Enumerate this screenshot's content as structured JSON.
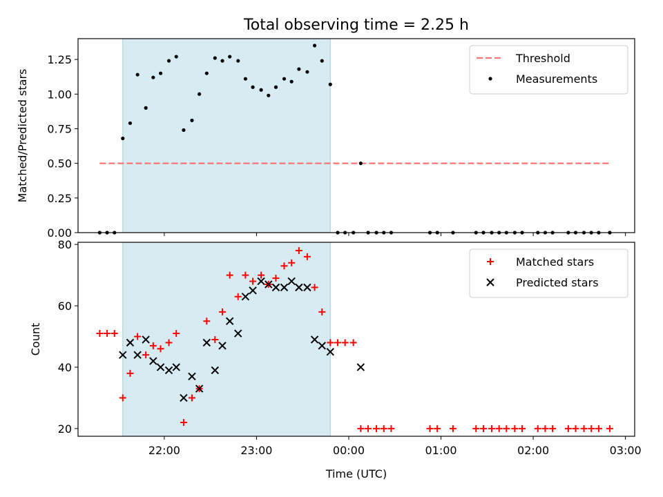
{
  "figure_title": "Total observing time = 2.25 h",
  "xlabel": "Time (UTC)",
  "shared_x": {
    "tick_labels": [
      "22:00",
      "23:00",
      "00:00",
      "01:00",
      "02:00",
      "03:00"
    ],
    "tick_hours": [
      22,
      23,
      24,
      25,
      26,
      27
    ],
    "xlim": [
      21.065,
      27.1
    ],
    "shaded_span": [
      21.55,
      23.8
    ]
  },
  "chart_data": [
    {
      "type": "scatter",
      "panel": "top",
      "ylabel": "Matched/Predicted stars",
      "ylim": [
        0,
        1.4
      ],
      "yticks": [
        0.0,
        0.25,
        0.5,
        0.75,
        1.0,
        1.25
      ],
      "ytick_labels": [
        "0.00",
        "0.25",
        "0.50",
        "0.75",
        "1.00",
        "1.25"
      ],
      "legend": {
        "placement": "top-right",
        "entries": [
          "Threshold",
          "Measurements"
        ]
      },
      "threshold": {
        "name": "Threshold",
        "y": 0.5,
        "x_range": [
          21.3,
          26.83
        ],
        "color": "#ff7373"
      },
      "series": [
        {
          "name": "Measurements",
          "marker": "dot",
          "color": "#000000",
          "x": [
            21.3,
            21.38,
            21.46,
            21.55,
            21.63,
            21.71,
            21.8,
            21.88,
            21.96,
            22.05,
            22.13,
            22.21,
            22.3,
            22.38,
            22.46,
            22.55,
            22.63,
            22.71,
            22.8,
            22.88,
            22.96,
            23.05,
            23.13,
            23.21,
            23.3,
            23.38,
            23.46,
            23.55,
            23.63,
            23.71,
            23.8,
            23.88,
            23.96,
            24.05,
            24.13,
            24.21,
            24.3,
            24.38,
            24.46,
            24.88,
            24.96,
            25.13,
            25.38,
            25.46,
            25.55,
            25.63,
            25.71,
            25.8,
            25.88,
            26.05,
            26.13,
            26.21,
            26.38,
            26.46,
            26.55,
            26.63,
            26.71,
            26.83
          ],
          "y": [
            0,
            0,
            0,
            0.68,
            0.79,
            1.14,
            0.9,
            1.12,
            1.15,
            1.24,
            1.27,
            0.74,
            0.81,
            1.0,
            1.15,
            1.26,
            1.24,
            1.27,
            1.24,
            1.11,
            1.05,
            1.03,
            0.99,
            1.05,
            1.11,
            1.09,
            1.18,
            1.16,
            1.35,
            1.24,
            1.07,
            0,
            0,
            0,
            0.5,
            0,
            0,
            0,
            0,
            0,
            0,
            0,
            0,
            0,
            0,
            0,
            0,
            0,
            0,
            0,
            0,
            0,
            0,
            0,
            0,
            0,
            0,
            0
          ]
        }
      ]
    },
    {
      "type": "scatter",
      "panel": "bottom",
      "ylabel": "Count",
      "ylim": [
        17.5,
        80.7
      ],
      "yticks": [
        20,
        40,
        60,
        80
      ],
      "ytick_labels": [
        "20",
        "40",
        "60",
        "80"
      ],
      "legend": {
        "placement": "top-right",
        "entries": [
          "Matched stars",
          "Predicted stars"
        ]
      },
      "series": [
        {
          "name": "Matched stars",
          "marker": "plus",
          "color": "#ff0000",
          "x": [
            21.3,
            21.38,
            21.46,
            21.55,
            21.63,
            21.71,
            21.8,
            21.88,
            21.96,
            22.05,
            22.13,
            22.21,
            22.3,
            22.38,
            22.46,
            22.55,
            22.63,
            22.71,
            22.8,
            22.88,
            22.96,
            23.05,
            23.13,
            23.21,
            23.3,
            23.38,
            23.46,
            23.55,
            23.63,
            23.71,
            23.8,
            23.88,
            23.96,
            24.05,
            24.13,
            24.21,
            24.3,
            24.38,
            24.46,
            24.88,
            24.96,
            25.13,
            25.38,
            25.46,
            25.55,
            25.63,
            25.71,
            25.8,
            25.88,
            26.05,
            26.13,
            26.21,
            26.38,
            26.46,
            26.55,
            26.63,
            26.71,
            26.83
          ],
          "y": [
            51,
            51,
            51,
            30,
            38,
            50,
            44,
            47,
            46,
            48,
            51,
            22,
            30,
            33,
            55,
            49,
            58,
            70,
            63,
            70,
            68,
            70,
            67,
            69,
            73,
            74,
            78,
            76,
            66,
            58,
            48,
            48,
            48,
            48,
            20,
            20,
            20,
            20,
            20,
            20,
            20,
            20,
            20,
            20,
            20,
            20,
            20,
            20,
            20,
            20,
            20,
            20,
            20,
            20,
            20,
            20,
            20,
            20
          ]
        },
        {
          "name": "Predicted stars",
          "marker": "x",
          "color": "#000000",
          "x": [
            21.55,
            21.63,
            21.71,
            21.8,
            21.88,
            21.96,
            22.05,
            22.13,
            22.21,
            22.3,
            22.38,
            22.46,
            22.55,
            22.63,
            22.71,
            22.8,
            22.88,
            22.96,
            23.05,
            23.13,
            23.21,
            23.3,
            23.38,
            23.46,
            23.55,
            23.63,
            23.71,
            23.8,
            24.13
          ],
          "y": [
            44,
            48,
            44,
            49,
            42,
            40,
            39,
            40,
            30,
            37,
            33,
            48,
            39,
            47,
            55,
            51,
            63,
            65,
            68,
            67,
            66,
            66,
            68,
            66,
            66,
            49,
            47,
            45,
            40
          ]
        }
      ]
    }
  ]
}
